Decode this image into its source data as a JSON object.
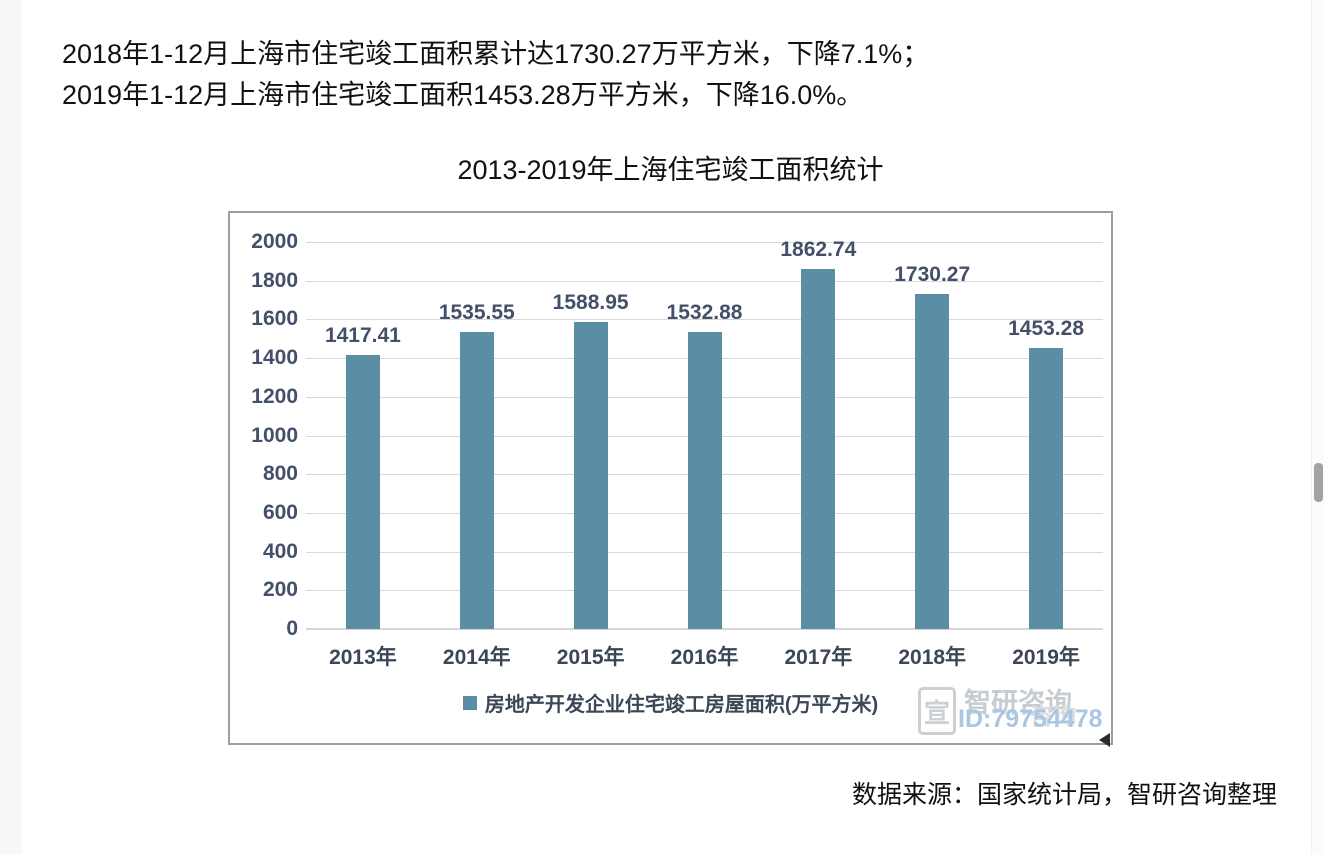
{
  "page": {
    "intro_lines": [
      "2018年1-12月上海市住宅竣工面积累计达1730.27万平方米，下降7.1%；",
      "2019年1-12月上海市住宅竣工面积1453.28万平方米，下降16.0%。"
    ],
    "source_note": "数据来源：国家统计局，智研咨询整理"
  },
  "chart_data": {
    "type": "bar",
    "title": "2013-2019年上海住宅竣工面积统计",
    "categories": [
      "2013年",
      "2014年",
      "2015年",
      "2016年",
      "2017年",
      "2018年",
      "2019年"
    ],
    "values": [
      1417.41,
      1535.55,
      1588.95,
      1532.88,
      1862.74,
      1730.27,
      1453.28
    ],
    "series_name": "房地产开发企业住宅竣工房屋面积(万平方米)",
    "ylabel": "",
    "xlabel": "",
    "ylim": [
      0,
      2000
    ],
    "ytick_step": 200,
    "grid": true,
    "legend_position": "bottom",
    "bar_color": "#5b8da5",
    "label_color": "#44506a",
    "gridline_color": "#d9d9d9"
  },
  "watermark": {
    "logo_glyph": "宣",
    "brand": "智研咨询",
    "brand_shadow": "咨询",
    "id_text": "ID:79754478"
  }
}
